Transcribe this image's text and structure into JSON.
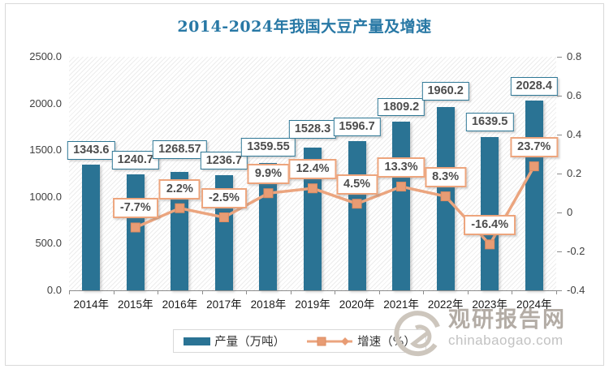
{
  "title": "2014-2024年我国大豆产量及增速",
  "legend": {
    "production": "产量（万吨）",
    "growth": "增速（%）"
  },
  "watermark": {
    "name": "观研报告网",
    "url": "chinabaogao.com"
  },
  "colors": {
    "bar": "#2a7394",
    "bar_label_border": "#2e7795",
    "line": "#eba57f",
    "marker_fill": "#e89c74",
    "marker_stroke": "#dd8c62",
    "growth_label_border": "#eda57d",
    "title_text": "#2878a5",
    "label_text": "#4d4d4d",
    "axis_text": "#3f3f3f",
    "frame_border": "#d9d9d9"
  },
  "chart_data": {
    "type": "bar",
    "title": "2014-2024年我国大豆产量及增速",
    "categories": [
      "2014年",
      "2015年",
      "2016年",
      "2017年",
      "2018年",
      "2019年",
      "2020年",
      "2021年",
      "2022年",
      "2023年",
      "2024年"
    ],
    "series": [
      {
        "name": "产量（万吨）",
        "type": "bar",
        "axis": "left",
        "values": [
          1343.6,
          1240.7,
          1268.57,
          1236.7,
          1359.55,
          1528.3,
          1596.7,
          1809.2,
          1960.2,
          1639.5,
          2028.4
        ],
        "labels": [
          "1343.6",
          "1240.7",
          "1268.57",
          "1236.7",
          "1359.55",
          "1528.3",
          "1596.7",
          "1809.2",
          "1960.2",
          "1639.5",
          "2028.4"
        ]
      },
      {
        "name": "增速（%）",
        "type": "line",
        "axis": "right",
        "values": [
          null,
          -0.077,
          0.022,
          -0.025,
          0.099,
          0.124,
          0.045,
          0.133,
          0.083,
          -0.164,
          0.237
        ],
        "labels": [
          null,
          "-7.7%",
          "2.2%",
          "-2.5%",
          "9.9%",
          "12.4%",
          "4.5%",
          "13.3%",
          "8.3%",
          "-16.4%",
          "23.7%"
        ]
      }
    ],
    "left_axis": {
      "min": 0,
      "max": 2500,
      "ticks": [
        "2500.0",
        "2000.0",
        "1500.0",
        "1000.0",
        "500.0",
        "0.0"
      ],
      "label": ""
    },
    "right_axis": {
      "min": -0.4,
      "max": 0.8,
      "ticks": [
        "0.8",
        "0.6",
        "0.4",
        "0.2",
        "0",
        "-0.2",
        "-0.4"
      ],
      "label": ""
    },
    "grid": false,
    "legend_position": "bottom",
    "plot_background": "diagonal-hatch"
  }
}
